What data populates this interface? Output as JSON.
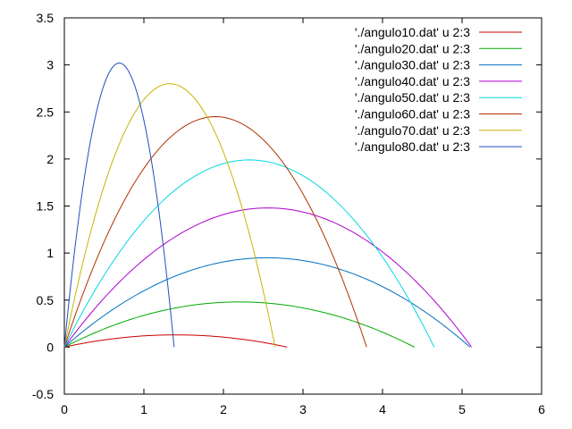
{
  "chart_data": {
    "type": "line",
    "xlim": [
      0,
      6
    ],
    "ylim": [
      -0.5,
      3.5
    ],
    "x_ticks": [
      "0",
      "1",
      "2",
      "3",
      "4",
      "5",
      "6"
    ],
    "y_ticks": [
      "-0.5",
      "0",
      "0.5",
      "1",
      "1.5",
      "2",
      "2.5",
      "3",
      "3.5"
    ],
    "grid": false,
    "legend_position": "top-right",
    "series": [
      {
        "name": "'./angulo10.dat' u 2:3",
        "color": "#cc0000",
        "range": 2.8,
        "max_height": 0.13
      },
      {
        "name": "'./angulo20.dat' u 2:3",
        "color": "#00aa00",
        "range": 4.4,
        "max_height": 0.48
      },
      {
        "name": "'./angulo30.dat' u 2:3",
        "color": "#0070c0",
        "range": 5.1,
        "max_height": 0.95
      },
      {
        "name": "'./angulo40.dat' u 2:3",
        "color": "#b000d0",
        "range": 5.12,
        "max_height": 1.48
      },
      {
        "name": "'./angulo50.dat' u 2:3",
        "color": "#00d8e0",
        "range": 4.65,
        "max_height": 1.99
      },
      {
        "name": "'./angulo60.dat' u 2:3",
        "color": "#b03000",
        "range": 3.8,
        "max_height": 2.45
      },
      {
        "name": "'./angulo70.dat' u 2:3",
        "color": "#c8b400",
        "range": 2.65,
        "max_height": 2.8
      },
      {
        "name": "'./angulo80.dat' u 2:3",
        "color": "#2050c0",
        "range": 1.38,
        "max_height": 3.02
      }
    ]
  }
}
